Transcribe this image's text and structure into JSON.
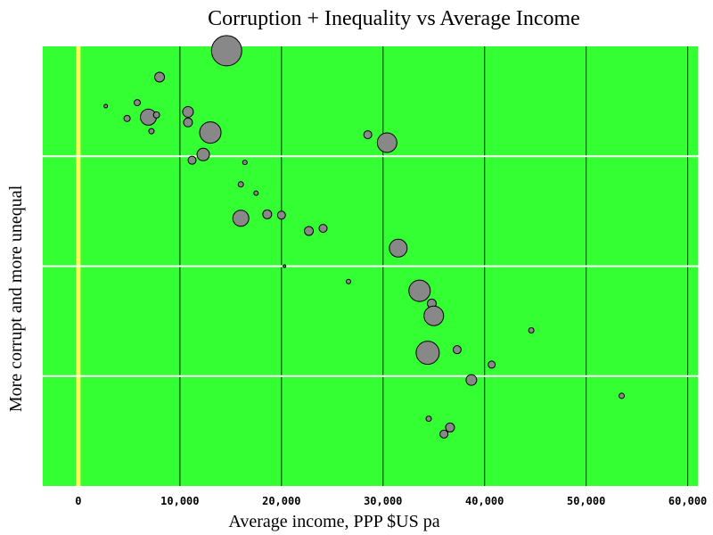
{
  "chart_data": {
    "type": "scatter",
    "title": "Corruption + Inequality vs Average Income",
    "xlabel": "Average income, PPP $US pa",
    "ylabel": "More corrupt and more unequal",
    "xlim": [
      -3500,
      61000
    ],
    "x_ticks": [
      0,
      10000,
      20000,
      30000,
      40000,
      50000,
      60000
    ],
    "x_tick_labels": [
      "0",
      "10,000",
      "20,000",
      "30,000",
      "40,000",
      "50,000",
      "60,000"
    ],
    "y_gridlines": 3,
    "y_ticks_labeled": false,
    "grid": true,
    "colors": {
      "plot_background": "#33ff33",
      "x_grid": "#000000",
      "y_grid": "#ffffff",
      "zero_line": "#ffff55",
      "marker_fill": "#888888",
      "marker_stroke": "#000000"
    },
    "note": "y values are relative positions (0 = bottom, 1 = top); marker size reflects a third variable",
    "points": [
      {
        "x": 2700,
        "y": 0.864,
        "size": 2
      },
      {
        "x": 4800,
        "y": 0.836,
        "size": 3.5
      },
      {
        "x": 5800,
        "y": 0.872,
        "size": 3.5
      },
      {
        "x": 6900,
        "y": 0.839,
        "size": 9
      },
      {
        "x": 7200,
        "y": 0.807,
        "size": 3
      },
      {
        "x": 7700,
        "y": 0.844,
        "size": 3.5
      },
      {
        "x": 8000,
        "y": 0.93,
        "size": 5.5
      },
      {
        "x": 10800,
        "y": 0.851,
        "size": 6
      },
      {
        "x": 10800,
        "y": 0.827,
        "size": 5
      },
      {
        "x": 11200,
        "y": 0.741,
        "size": 4.5
      },
      {
        "x": 12300,
        "y": 0.754,
        "size": 7
      },
      {
        "x": 13000,
        "y": 0.804,
        "size": 12
      },
      {
        "x": 14600,
        "y": 0.99,
        "size": 17
      },
      {
        "x": 16000,
        "y": 0.686,
        "size": 3
      },
      {
        "x": 16000,
        "y": 0.609,
        "size": 9
      },
      {
        "x": 16400,
        "y": 0.736,
        "size": 2.5
      },
      {
        "x": 17500,
        "y": 0.666,
        "size": 2.5
      },
      {
        "x": 18600,
        "y": 0.618,
        "size": 5
      },
      {
        "x": 20000,
        "y": 0.616,
        "size": 4.5
      },
      {
        "x": 20300,
        "y": 0.5,
        "size": 1.5
      },
      {
        "x": 22700,
        "y": 0.58,
        "size": 5
      },
      {
        "x": 24100,
        "y": 0.586,
        "size": 4.5
      },
      {
        "x": 26600,
        "y": 0.465,
        "size": 2.5
      },
      {
        "x": 28500,
        "y": 0.799,
        "size": 4.5
      },
      {
        "x": 30400,
        "y": 0.781,
        "size": 11
      },
      {
        "x": 31500,
        "y": 0.541,
        "size": 10
      },
      {
        "x": 33600,
        "y": 0.444,
        "size": 12
      },
      {
        "x": 34800,
        "y": 0.415,
        "size": 5
      },
      {
        "x": 35000,
        "y": 0.387,
        "size": 11
      },
      {
        "x": 34400,
        "y": 0.303,
        "size": 13
      },
      {
        "x": 34500,
        "y": 0.153,
        "size": 3
      },
      {
        "x": 36000,
        "y": 0.118,
        "size": 4.5
      },
      {
        "x": 36600,
        "y": 0.133,
        "size": 5
      },
      {
        "x": 37300,
        "y": 0.31,
        "size": 4.5
      },
      {
        "x": 38700,
        "y": 0.241,
        "size": 6
      },
      {
        "x": 40700,
        "y": 0.276,
        "size": 4
      },
      {
        "x": 44600,
        "y": 0.354,
        "size": 3
      },
      {
        "x": 53500,
        "y": 0.205,
        "size": 3
      }
    ]
  }
}
